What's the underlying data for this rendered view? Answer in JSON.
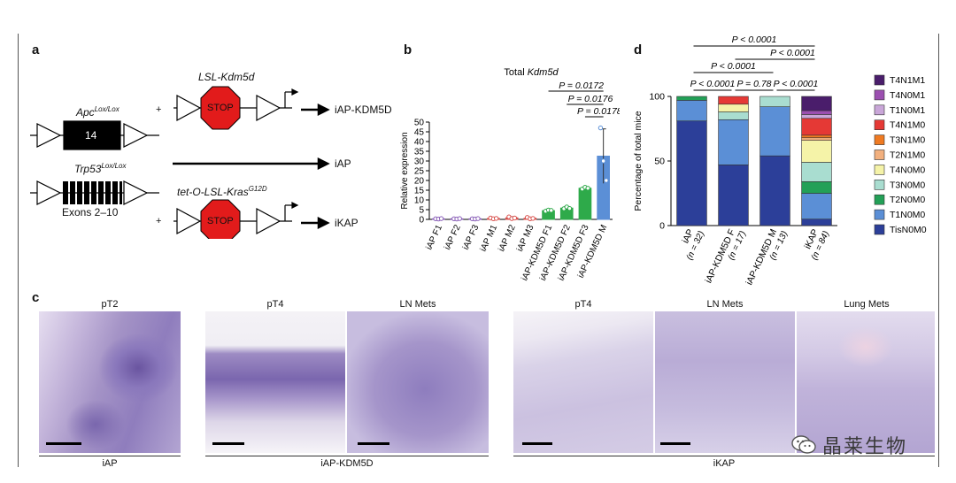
{
  "panels": {
    "a": "a",
    "b": "b",
    "c": "c",
    "d": "d"
  },
  "panel_a": {
    "lsl_kdm5d": "LSL-Kdm5d",
    "apc_base": "Apc",
    "apc_sup": "Lox/Lox",
    "exon14": "14",
    "trp53_base": "Trp53",
    "trp53_sup": "Lox/Lox",
    "exons_label": "Exons 2–10",
    "kras_base": "tet-O-LSL-Kras",
    "kras_sup": "G12D",
    "stop_text": "STOP",
    "plus": "+",
    "out_iap_kdm5d": "iAP-KDM5D",
    "out_iap": "iAP",
    "out_ikap": "iKAP"
  },
  "chart_data": [
    {
      "type": "bar",
      "panel": "b",
      "title_prefix": "Total ",
      "title_gene": "Kdm5d",
      "ylabel": "Relative expression",
      "ylim": [
        0,
        50
      ],
      "yticks": [
        0,
        5,
        10,
        15,
        20,
        25,
        30,
        35,
        40,
        45,
        50
      ],
      "categories": [
        "iAP F1",
        "iAP F2",
        "iAP F3",
        "iAP M1",
        "iAP M2",
        "iAP M3",
        "iAP-KDM5D F1",
        "iAP-KDM5D F2",
        "iAP-KDM5D F3",
        "iAP-KDM5D M"
      ],
      "values": [
        0.3,
        0.3,
        0.3,
        0.5,
        0.8,
        0.6,
        4.5,
        5.8,
        16.0,
        32.5
      ],
      "errors": [
        0.1,
        0.1,
        0.1,
        0.3,
        0.6,
        0.4,
        0.5,
        0.8,
        0.6,
        14.0
      ],
      "points": [
        [
          0.3,
          0.2,
          0.4
        ],
        [
          0.3,
          0.2,
          0.4
        ],
        [
          0.3,
          0.2,
          0.4
        ],
        [
          0.7,
          0.3,
          0.5
        ],
        [
          1.3,
          0.4,
          0.7
        ],
        [
          1.0,
          0.3,
          0.5
        ],
        [
          4.2,
          4.8,
          4.6
        ],
        [
          5.5,
          6.4,
          5.6
        ],
        [
          15.6,
          16.5,
          16.0
        ],
        [
          47.0,
          30.0,
          20.0
        ]
      ],
      "colors": [
        "#8a5fb8",
        "#8a5fb8",
        "#8a5fb8",
        "#d9534f",
        "#d9534f",
        "#d9534f",
        "#2eaa4a",
        "#2eaa4a",
        "#2eaa4a",
        "#5b8fd6"
      ],
      "comparisons": [
        {
          "label": "P = 0.0172",
          "from": 6,
          "to": 9
        },
        {
          "label": "P = 0.0176",
          "from": 7,
          "to": 9
        },
        {
          "label": "P = 0.0178",
          "from": 8,
          "to": 9
        }
      ]
    },
    {
      "type": "bar",
      "stacked": true,
      "panel": "d",
      "ylabel": "Percentage of total mice",
      "ylim": [
        0,
        100
      ],
      "yticks": [
        0,
        50,
        100
      ],
      "categories": [
        {
          "name": "iAP",
          "n": "(n = 32)"
        },
        {
          "name": "iAP-KDM5D F",
          "n": "(n = 17)"
        },
        {
          "name": "iAP-KDM5D M",
          "n": "(n = 13)"
        },
        {
          "name": "iKAP",
          "n": "(n = 84)"
        }
      ],
      "series": [
        {
          "name": "TisN0M0",
          "color": "#2c3f99",
          "values": [
            81,
            47,
            54,
            5
          ]
        },
        {
          "name": "T1N0M0",
          "color": "#5b8fd6",
          "values": [
            16,
            35,
            38,
            20
          ]
        },
        {
          "name": "T2N0M0",
          "color": "#23a057",
          "values": [
            3,
            0,
            0,
            9
          ]
        },
        {
          "name": "T3N0M0",
          "color": "#a9ddd0",
          "values": [
            0,
            6,
            8,
            15
          ]
        },
        {
          "name": "T4N0M0",
          "color": "#f5f3a8",
          "values": [
            0,
            6,
            0,
            17
          ]
        },
        {
          "name": "T2N1M0",
          "color": "#f2b07e",
          "values": [
            0,
            0,
            0,
            2
          ]
        },
        {
          "name": "T3N1M0",
          "color": "#ef7a22",
          "values": [
            0,
            0,
            0,
            2
          ]
        },
        {
          "name": "T4N1M0",
          "color": "#e53935",
          "values": [
            0,
            6,
            0,
            13
          ]
        },
        {
          "name": "T1N0M1",
          "color": "#c9a6d8",
          "values": [
            0,
            0,
            0,
            3
          ]
        },
        {
          "name": "T4N0M1",
          "color": "#9b4fb0",
          "values": [
            0,
            0,
            0,
            3
          ]
        },
        {
          "name": "T4N1M1",
          "color": "#4a1d6b",
          "values": [
            0,
            0,
            0,
            11
          ]
        }
      ],
      "comparisons": [
        {
          "label": "P < 0.0001",
          "from": 0,
          "to": 3,
          "tier": 4
        },
        {
          "label": "P < 0.0001",
          "from": 1,
          "to": 3,
          "tier": 3
        },
        {
          "label": "P < 0.0001",
          "from": 0,
          "to": 2,
          "tier": 2
        },
        {
          "label": "P < 0.0001",
          "from": 0,
          "to": 1,
          "tier": 1
        },
        {
          "label": "P = 0.78",
          "from": 1,
          "to": 2,
          "tier": 1
        },
        {
          "label": "P < 0.0001",
          "from": 2,
          "to": 3,
          "tier": 1
        }
      ]
    }
  ],
  "panel_c": {
    "images": [
      {
        "title": "pT2"
      },
      {
        "title": "pT4"
      },
      {
        "title": "LN Mets"
      },
      {
        "title": "pT4"
      },
      {
        "title": "LN Mets"
      },
      {
        "title": "Lung Mets"
      }
    ],
    "groups": [
      "iAP",
      "iAP-KDM5D",
      "iKAP"
    ]
  },
  "watermark": {
    "text": "晶莱生物"
  }
}
